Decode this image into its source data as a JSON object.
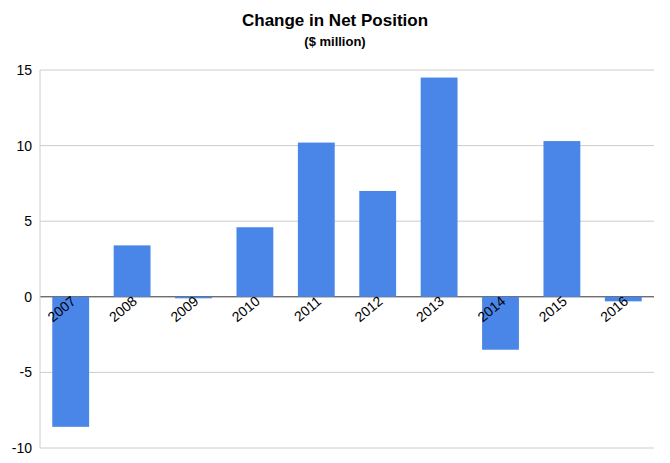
{
  "chart_data": {
    "type": "bar",
    "title": "Change in Net Position",
    "subtitle": "($ million)",
    "categories": [
      "2007",
      "2008",
      "2009",
      "2010",
      "2011",
      "2012",
      "2013",
      "2014",
      "2015",
      "2016"
    ],
    "values": [
      -8.6,
      3.4,
      -0.1,
      4.6,
      10.2,
      7.0,
      14.5,
      -3.5,
      10.3,
      -0.3
    ],
    "color": "#4a86e8",
    "ylim": [
      -10,
      15
    ],
    "yticks": [
      -10,
      -5,
      0,
      5,
      10,
      15
    ],
    "grid": true
  }
}
